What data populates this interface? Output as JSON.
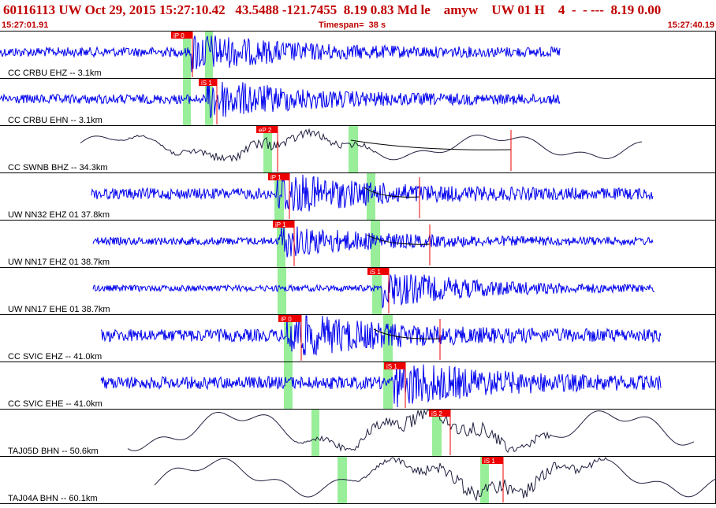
{
  "header": {
    "title": "60116113 UW Oct 29, 2015 15:27:10.42   43.5488 -121.7455  8.19 0.83 Md le    amyw    UW 01 H    4  -  - ---  8.19 0.00",
    "start_time": "15:27:01.91",
    "timespan": "Timespan=  38 s",
    "end_time": "15:27:40.19"
  },
  "colors": {
    "header_text": "#c00000",
    "trace_blue": "#0000ee",
    "trace_dark": "#202040",
    "pick_red": "#ee0000",
    "window_green": "#99ee99"
  },
  "channels": [
    {
      "label": "CC CRBU EHZ -- 3.1km",
      "trace_color": "blue",
      "style": "noise",
      "pick": {
        "label": "iP 0"
      }
    },
    {
      "label": "CC CRBU EHN -- 3.1km",
      "trace_color": "blue",
      "style": "noise",
      "pick": {
        "label": "iS 1"
      }
    },
    {
      "label": "CC SWNB BHZ -- 34.3km",
      "trace_color": "dark",
      "style": "wave",
      "pick": {
        "label": "eP 2"
      }
    },
    {
      "label": "UW NN32 EHZ 01 37.8km",
      "trace_color": "blue",
      "style": "noise",
      "pick": {
        "label": "iP 1"
      }
    },
    {
      "label": "UW NN17 EHZ 01 38.7km",
      "trace_color": "blue",
      "style": "noise",
      "pick": {
        "label": "iP 1"
      }
    },
    {
      "label": "UW NN17 EHE 01 38.7km",
      "trace_color": "blue",
      "style": "noise",
      "pick": {
        "label": "iS 1"
      }
    },
    {
      "label": "CC SVIC EHZ -- 41.0km",
      "trace_color": "blue",
      "style": "noise",
      "pick": {
        "label": "iP 0"
      }
    },
    {
      "label": "CC SVIC EHE -- 41.0km",
      "trace_color": "blue",
      "style": "noise",
      "pick": {
        "label": "iS 1"
      }
    },
    {
      "label": "TAJ05D BHN -- 50.6km",
      "trace_color": "dark",
      "style": "wave",
      "pick": {
        "label": "iS 2"
      }
    },
    {
      "label": "TAJ04A BHN -- 60.1km",
      "trace_color": "dark",
      "style": "wave",
      "pick": {
        "label": "iS 1"
      }
    }
  ]
}
